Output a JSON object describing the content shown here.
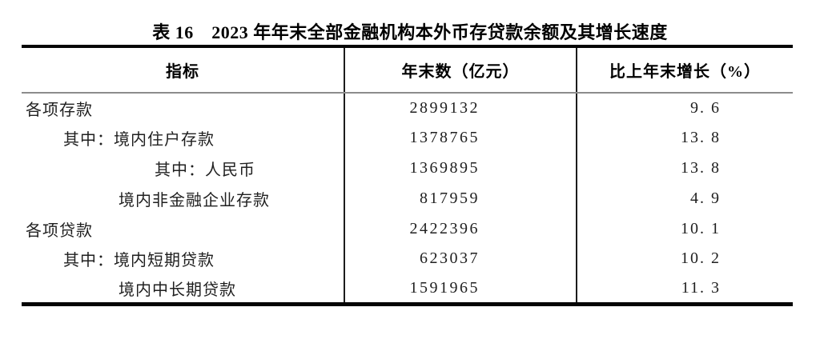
{
  "title": "表 16　2023 年年末全部金融机构本外币存贷款余额及其增长速度",
  "table": {
    "columns": [
      "指标",
      "年末数（亿元）",
      "比上年末增长（%）"
    ],
    "rows": [
      {
        "label": "各项存款",
        "indent": 0,
        "value": "2899132",
        "growth": "9. 6"
      },
      {
        "label": "其中：境内住户存款",
        "indent": 1,
        "value": "1378765",
        "growth": "13. 8"
      },
      {
        "label": "其中：人民币",
        "indent": 3,
        "value": "1369895",
        "growth": "13. 8"
      },
      {
        "label": "境内非金融企业存款",
        "indent": 2,
        "value": "817959",
        "growth": "4. 9"
      },
      {
        "label": "各项贷款",
        "indent": 0,
        "value": "2422396",
        "growth": "10. 1"
      },
      {
        "label": "其中：境内短期贷款",
        "indent": 1,
        "value": "623037",
        "growth": "10. 2"
      },
      {
        "label": "境内中长期贷款",
        "indent": 2,
        "value": "1591965",
        "growth": "11. 3"
      }
    ]
  }
}
